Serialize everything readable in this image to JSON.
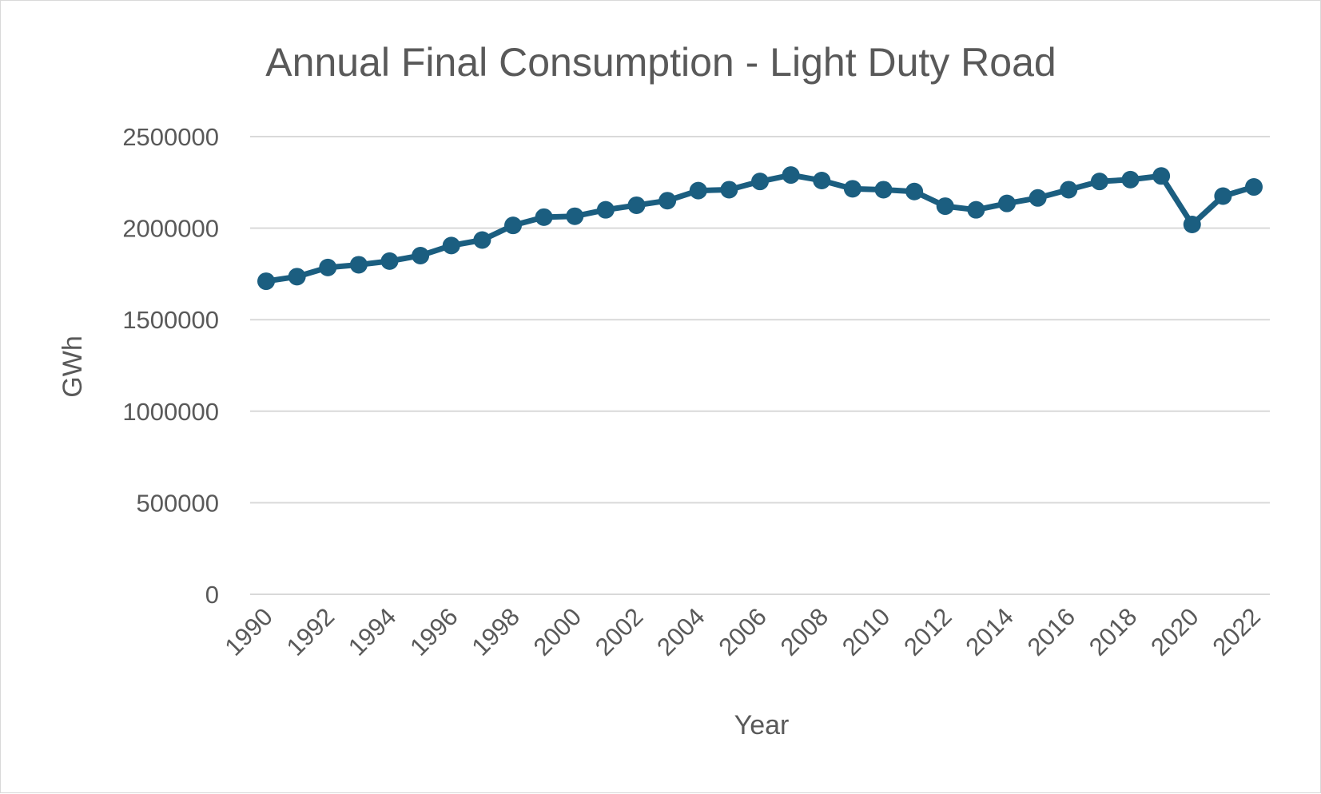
{
  "chart_data": {
    "type": "line",
    "title": "Annual Final Consumption - Light Duty Road",
    "xlabel": "Year",
    "ylabel": "GWh",
    "ylim": [
      0,
      2500000
    ],
    "yticks": [
      "0",
      "500000",
      "1000000",
      "1500000",
      "2000000",
      "2500000"
    ],
    "ytick_values": [
      0,
      500000,
      1000000,
      1500000,
      2000000,
      2500000
    ],
    "xtick_labels": [
      "1990",
      "1992",
      "1994",
      "1996",
      "1998",
      "2000",
      "2002",
      "2004",
      "2006",
      "2008",
      "2010",
      "2012",
      "2014",
      "2016",
      "2018",
      "2020",
      "2022"
    ],
    "grid": true,
    "legend": "none",
    "series_color": "#1b5e80",
    "x": [
      1990,
      1991,
      1992,
      1993,
      1994,
      1995,
      1996,
      1997,
      1998,
      1999,
      2000,
      2001,
      2002,
      2003,
      2004,
      2005,
      2006,
      2007,
      2008,
      2009,
      2010,
      2011,
      2012,
      2013,
      2014,
      2015,
      2016,
      2017,
      2018,
      2019,
      2020,
      2021,
      2022
    ],
    "series": [
      {
        "values": [
          1710000,
          1735000,
          1785000,
          1800000,
          1820000,
          1850000,
          1905000,
          1935000,
          2015000,
          2060000,
          2065000,
          2100000,
          2125000,
          2150000,
          2205000,
          2210000,
          2255000,
          2290000,
          2260000,
          2215000,
          2210000,
          2200000,
          2120000,
          2100000,
          2135000,
          2165000,
          2210000,
          2255000,
          2265000,
          2285000,
          2020000,
          2175000,
          2225000
        ]
      }
    ]
  }
}
